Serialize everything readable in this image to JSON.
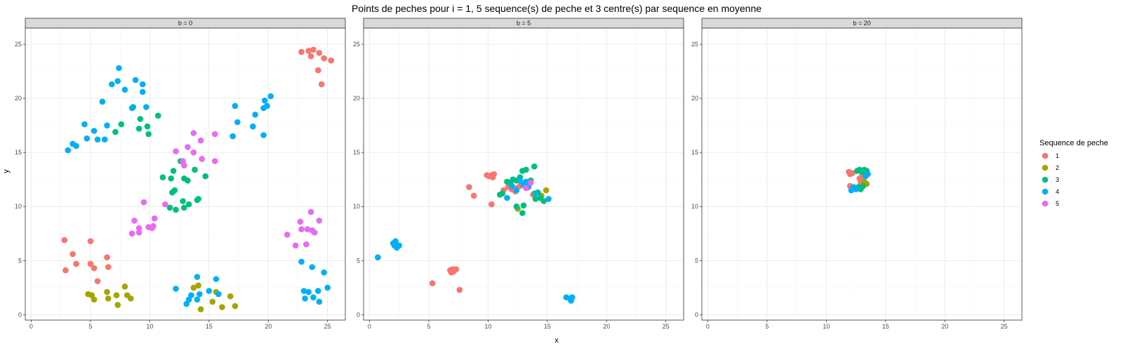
{
  "colors": {
    "series": [
      "#F8766D",
      "#A3A500",
      "#00BF7D",
      "#00B0F6",
      "#E76BF3"
    ],
    "strip_fill": "#D9D9D9",
    "grid_major": "#EBEBEB",
    "grid_minor": "#F5F5F5",
    "panel_border": "#333333"
  },
  "chart_data": {
    "type": "scatter",
    "title": "Points de peches pour i = 1, 5 sequence(s) de peche et 3 centre(s) par sequence en moyenne",
    "xlabel": "x",
    "ylabel": "y",
    "xlim": [
      -0.5,
      26.5
    ],
    "ylim": [
      -0.5,
      26.5
    ],
    "x_ticks": [
      0,
      5,
      10,
      15,
      20,
      25
    ],
    "y_ticks": [
      0,
      5,
      10,
      15,
      20,
      25
    ],
    "grid": true,
    "legend": {
      "title": "Sequence de peche",
      "position": "right",
      "entries": [
        "1",
        "2",
        "3",
        "4",
        "5"
      ]
    },
    "panels": [
      {
        "strip": "b = 0",
        "series": [
          {
            "name": "1",
            "points": [
              [
                2.8,
                6.9
              ],
              [
                2.9,
                4.1
              ],
              [
                3.5,
                5.6
              ],
              [
                3.8,
                4.7
              ],
              [
                5.0,
                6.8
              ],
              [
                5.0,
                4.7
              ],
              [
                5.3,
                4.3
              ],
              [
                5.6,
                3.1
              ],
              [
                6.4,
                5.3
              ],
              [
                6.5,
                4.4
              ],
              [
                22.8,
                24.3
              ],
              [
                23.4,
                24.4
              ],
              [
                23.6,
                23.9
              ],
              [
                23.8,
                24.5
              ],
              [
                24.2,
                22.6
              ],
              [
                24.3,
                24.2
              ],
              [
                24.5,
                21.3
              ],
              [
                24.7,
                23.7
              ],
              [
                25.3,
                23.5
              ]
            ]
          },
          {
            "name": "2",
            "points": [
              [
                4.8,
                1.9
              ],
              [
                5.1,
                1.8
              ],
              [
                5.3,
                1.4
              ],
              [
                6.4,
                2.1
              ],
              [
                6.5,
                1.5
              ],
              [
                7.2,
                1.8
              ],
              [
                7.3,
                0.9
              ],
              [
                7.9,
                2.6
              ],
              [
                8.1,
                1.8
              ],
              [
                8.4,
                1.5
              ],
              [
                13.7,
                2.5
              ],
              [
                14.1,
                2.7
              ],
              [
                14.3,
                0.5
              ],
              [
                15.3,
                1.2
              ],
              [
                15.6,
                2.1
              ],
              [
                16.1,
                0.7
              ],
              [
                16.8,
                1.7
              ],
              [
                17.2,
                0.8
              ]
            ]
          },
          {
            "name": "3",
            "points": [
              [
                7.1,
                16.9
              ],
              [
                7.6,
                17.6
              ],
              [
                8.6,
                19.2
              ],
              [
                9.1,
                17.2
              ],
              [
                9.2,
                18.1
              ],
              [
                9.8,
                17.4
              ],
              [
                9.9,
                16.7
              ],
              [
                10.7,
                18.4
              ],
              [
                11.1,
                12.7
              ],
              [
                11.7,
                9.9
              ],
              [
                11.8,
                12.6
              ],
              [
                11.9,
                11.3
              ],
              [
                12.0,
                13.3
              ],
              [
                12.1,
                11.5
              ],
              [
                12.2,
                9.7
              ],
              [
                12.6,
                14.2
              ],
              [
                12.8,
                10.5
              ],
              [
                12.9,
                12.6
              ],
              [
                12.9,
                9.9
              ],
              [
                13.2,
                12.4
              ],
              [
                13.3,
                10.2
              ],
              [
                13.8,
                13.4
              ],
              [
                14.0,
                10.6
              ],
              [
                14.1,
                10.7
              ],
              [
                14.7,
                12.8
              ]
            ]
          },
          {
            "name": "4",
            "points": [
              [
                3.1,
                15.2
              ],
              [
                3.5,
                15.8
              ],
              [
                3.8,
                15.6
              ],
              [
                4.5,
                17.6
              ],
              [
                4.7,
                16.3
              ],
              [
                5.3,
                17.0
              ],
              [
                5.6,
                16.2
              ],
              [
                6.0,
                19.7
              ],
              [
                6.2,
                16.2
              ],
              [
                6.4,
                17.5
              ],
              [
                6.8,
                21.3
              ],
              [
                7.3,
                21.6
              ],
              [
                7.4,
                22.8
              ],
              [
                7.9,
                20.8
              ],
              [
                8.5,
                19.1
              ],
              [
                8.8,
                21.7
              ],
              [
                9.4,
                21.3
              ],
              [
                9.4,
                20.6
              ],
              [
                9.7,
                19.2
              ],
              [
                17.0,
                16.5
              ],
              [
                17.2,
                19.3
              ],
              [
                17.4,
                17.8
              ],
              [
                18.7,
                17.4
              ],
              [
                18.9,
                18.5
              ],
              [
                19.6,
                19.1
              ],
              [
                19.6,
                16.6
              ],
              [
                19.7,
                19.8
              ],
              [
                19.9,
                19.3
              ],
              [
                20.2,
                20.2
              ],
              [
                12.2,
                2.4
              ],
              [
                13.1,
                1.0
              ],
              [
                13.3,
                1.4
              ],
              [
                13.5,
                1.8
              ],
              [
                14.0,
                3.5
              ],
              [
                14.0,
                1.4
              ],
              [
                14.2,
                1.9
              ],
              [
                15.0,
                2.2
              ],
              [
                15.6,
                3.3
              ],
              [
                15.8,
                1.9
              ],
              [
                22.8,
                4.9
              ],
              [
                23.0,
                2.2
              ],
              [
                23.1,
                1.5
              ],
              [
                23.4,
                2.1
              ],
              [
                23.7,
                4.4
              ],
              [
                23.8,
                1.6
              ],
              [
                24.2,
                2.2
              ],
              [
                24.3,
                1.2
              ],
              [
                24.7,
                3.9
              ],
              [
                25.0,
                2.5
              ]
            ]
          },
          {
            "name": "5",
            "points": [
              [
                8.5,
                7.5
              ],
              [
                8.7,
                8.7
              ],
              [
                9.1,
                8.0
              ],
              [
                9.1,
                7.6
              ],
              [
                9.5,
                10.4
              ],
              [
                9.9,
                8.1
              ],
              [
                10.2,
                8.0
              ],
              [
                10.3,
                8.2
              ],
              [
                10.4,
                8.9
              ],
              [
                11.3,
                10.2
              ],
              [
                12.2,
                15.1
              ],
              [
                12.8,
                14.2
              ],
              [
                12.9,
                13.8
              ],
              [
                13.2,
                15.5
              ],
              [
                13.7,
                16.8
              ],
              [
                13.7,
                15.0
              ],
              [
                14.3,
                16.1
              ],
              [
                14.4,
                14.4
              ],
              [
                15.5,
                16.7
              ],
              [
                15.5,
                14.2
              ],
              [
                21.6,
                7.4
              ],
              [
                22.3,
                6.4
              ],
              [
                22.7,
                8.6
              ],
              [
                22.8,
                7.9
              ],
              [
                23.2,
                6.5
              ],
              [
                23.3,
                7.9
              ],
              [
                23.6,
                9.5
              ],
              [
                23.7,
                7.8
              ],
              [
                23.9,
                7.6
              ],
              [
                24.3,
                8.7
              ]
            ]
          }
        ]
      },
      {
        "strip": "b = 5",
        "series": [
          {
            "name": "1",
            "points": [
              [
                5.3,
                2.9
              ],
              [
                6.8,
                4.1
              ],
              [
                6.9,
                3.9
              ],
              [
                7.0,
                4.2
              ],
              [
                7.1,
                4.0
              ],
              [
                7.3,
                4.2
              ],
              [
                7.6,
                2.3
              ],
              [
                8.4,
                11.8
              ],
              [
                8.8,
                11.0
              ],
              [
                9.9,
                12.9
              ],
              [
                10.1,
                12.8
              ],
              [
                10.3,
                12.9
              ],
              [
                10.4,
                12.7
              ],
              [
                10.5,
                13.0
              ],
              [
                10.3,
                10.2
              ],
              [
                11.3,
                11.5
              ],
              [
                11.7,
                11.8
              ],
              [
                12.0,
                11.6
              ],
              [
                12.3,
                11.4
              ],
              [
                12.4,
                11.7
              ],
              [
                12.7,
                11.9
              ],
              [
                13.8,
                11.1
              ]
            ]
          },
          {
            "name": "2",
            "points": [
              [
                12.5,
                9.8
              ],
              [
                13.9,
                11.2
              ],
              [
                14.5,
                11.0
              ],
              [
                14.9,
                11.5
              ]
            ]
          },
          {
            "name": "3",
            "points": [
              [
                11.0,
                11.1
              ],
              [
                11.2,
                11.2
              ],
              [
                11.6,
                12.3
              ],
              [
                11.9,
                12.2
              ],
              [
                12.1,
                12.5
              ],
              [
                12.4,
                12.4
              ],
              [
                12.4,
                10.0
              ],
              [
                12.7,
                12.7
              ],
              [
                12.9,
                13.3
              ],
              [
                13.0,
                10.1
              ],
              [
                12.9,
                9.4
              ],
              [
                13.2,
                13.4
              ],
              [
                13.3,
                12.0
              ],
              [
                13.6,
                12.4
              ],
              [
                13.9,
                13.7
              ],
              [
                14.0,
                10.7
              ],
              [
                14.2,
                11.3
              ],
              [
                14.4,
                10.8
              ],
              [
                14.7,
                10.5
              ]
            ]
          },
          {
            "name": "4",
            "points": [
              [
                0.7,
                5.3
              ],
              [
                2.0,
                6.6
              ],
              [
                2.1,
                6.4
              ],
              [
                2.2,
                6.8
              ],
              [
                2.3,
                6.2
              ],
              [
                2.5,
                6.4
              ],
              [
                11.6,
                10.8
              ],
              [
                12.0,
                11.9
              ],
              [
                12.4,
                11.5
              ],
              [
                12.7,
                12.4
              ],
              [
                13.0,
                12.0
              ],
              [
                13.2,
                12.3
              ],
              [
                13.4,
                11.8
              ],
              [
                14.0,
                11.2
              ],
              [
                15.1,
                10.7
              ],
              [
                16.6,
                1.6
              ],
              [
                16.9,
                1.5
              ],
              [
                17.0,
                1.3
              ],
              [
                17.1,
                1.6
              ]
            ]
          },
          {
            "name": "5",
            "points": [
              [
                13.2,
                11.7
              ],
              [
                13.6,
                12.2
              ]
            ]
          }
        ]
      },
      {
        "strip": "b = 20",
        "series": [
          {
            "name": "1",
            "points": [
              [
                11.9,
                13.2
              ],
              [
                12.0,
                13.0
              ],
              [
                12.2,
                13.1
              ],
              [
                12.0,
                11.9
              ],
              [
                12.8,
                12.6
              ],
              [
                12.9,
                12.2
              ],
              [
                13.0,
                12.8
              ]
            ]
          },
          {
            "name": "2",
            "points": [
              [
                13.2,
                12.3
              ],
              [
                13.4,
                12.1
              ]
            ]
          },
          {
            "name": "3",
            "points": [
              [
                12.6,
                13.3
              ],
              [
                12.8,
                13.4
              ],
              [
                13.0,
                13.2
              ],
              [
                13.2,
                13.4
              ],
              [
                13.4,
                13.3
              ],
              [
                12.9,
                11.6
              ],
              [
                13.1,
                11.9
              ],
              [
                12.7,
                11.8
              ]
            ]
          },
          {
            "name": "4",
            "points": [
              [
                12.1,
                11.5
              ],
              [
                12.3,
                11.8
              ],
              [
                12.5,
                11.6
              ],
              [
                13.3,
                12.8
              ],
              [
                13.5,
                13.0
              ]
            ]
          },
          {
            "name": "5",
            "points": []
          }
        ]
      }
    ]
  }
}
